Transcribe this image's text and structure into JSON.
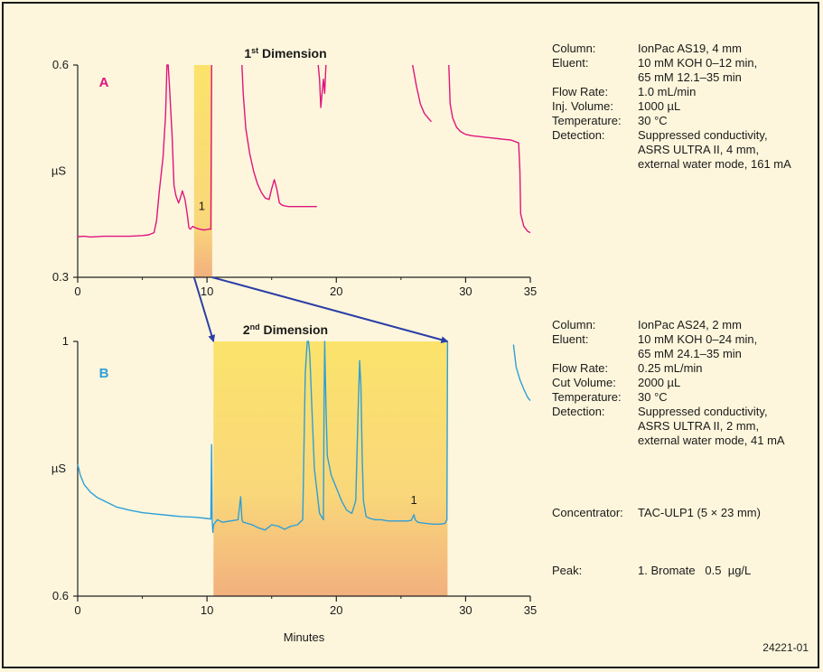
{
  "figure_id": "24221-01",
  "chart_data": [
    {
      "panel": "A",
      "type": "line",
      "title": "1st Dimension",
      "title_main": "1",
      "title_sup": "st",
      "title_rest": " Dimension",
      "color": "#e0157e",
      "ylabel": "µS",
      "ylim": [
        0.3,
        0.6
      ],
      "yticks": [
        "0.6",
        "0.3"
      ],
      "xlim": [
        0,
        35
      ],
      "xticks": [
        "0",
        "10",
        "20",
        "30",
        "35"
      ],
      "highlight": {
        "from": 9.0,
        "to": 10.4
      },
      "peak_label": {
        "text": "1",
        "x": 9.6
      },
      "series": [
        {
          "x": [
            0,
            0.5,
            1,
            2,
            3,
            4,
            5,
            5.5,
            5.9,
            6.1,
            6.3,
            6.6,
            6.8,
            6.9,
            7.0,
            7.1,
            7.3,
            7.45,
            7.6,
            7.7,
            7.8,
            7.9,
            8.1,
            8.3,
            8.5,
            8.6,
            8.7,
            8.8,
            8.9,
            9.1,
            9.4,
            9.7,
            9.9,
            10.1,
            10.3,
            10.36
          ],
          "y": [
            0.3575,
            0.358,
            0.357,
            0.358,
            0.358,
            0.358,
            0.359,
            0.36,
            0.363,
            0.38,
            0.42,
            0.47,
            0.53,
            0.6,
            0.6,
            0.57,
            0.5,
            0.43,
            0.415,
            0.41,
            0.405,
            0.41,
            0.422,
            0.41,
            0.385,
            0.37,
            0.368,
            0.37,
            0.372,
            0.37,
            0.368,
            0.367,
            0.367,
            0.368,
            0.368,
            0.6
          ]
        },
        {
          "x": [
            12.7,
            12.8,
            13.0,
            13.3,
            13.6,
            13.9,
            14.2,
            14.5,
            14.8,
            15.0,
            15.2,
            15.4,
            15.6,
            15.8,
            16.0,
            16.3,
            16.6,
            17.0,
            17.4,
            17.8,
            18.2,
            18.5
          ],
          "y": [
            0.6,
            0.56,
            0.51,
            0.475,
            0.45,
            0.432,
            0.42,
            0.412,
            0.41,
            0.425,
            0.438,
            0.425,
            0.405,
            0.402,
            0.401,
            0.4,
            0.4,
            0.4,
            0.4,
            0.4,
            0.4,
            0.4
          ]
        },
        {
          "x": [
            18.6,
            18.7,
            18.8,
            18.9,
            19.0,
            19.1,
            19.2
          ],
          "y": [
            0.6,
            0.58,
            0.54,
            0.56,
            0.58,
            0.56,
            0.6
          ]
        },
        {
          "x": [
            25.9,
            26.2,
            26.5,
            26.8,
            27.1,
            27.35
          ],
          "y": [
            0.6,
            0.57,
            0.545,
            0.532,
            0.525,
            0.52
          ]
        },
        {
          "x": [
            28.7,
            28.8,
            29.0,
            29.3,
            29.6,
            30.0,
            30.5,
            31.0,
            31.5,
            32.0,
            32.5,
            33.0,
            33.5,
            34.1,
            34.2,
            34.25,
            34.5,
            34.8,
            35
          ],
          "y": [
            0.6,
            0.545,
            0.525,
            0.512,
            0.506,
            0.502,
            0.5,
            0.499,
            0.498,
            0.497,
            0.496,
            0.495,
            0.494,
            0.49,
            0.45,
            0.39,
            0.372,
            0.365,
            0.363
          ]
        }
      ]
    },
    {
      "panel": "B",
      "type": "line",
      "title": "2nd Dimension",
      "title_main": "2",
      "title_sup": "nd",
      "title_rest": " Dimension",
      "color": "#2f9fd6",
      "ylabel": "µS",
      "xlabel": "Minutes",
      "ylim": [
        0.6,
        1.0
      ],
      "yticks": [
        "1",
        "0.6"
      ],
      "xlim": [
        0,
        35
      ],
      "xticks": [
        "0",
        "10",
        "20",
        "30",
        "35"
      ],
      "highlight": {
        "from": 10.5,
        "to": 28.6
      },
      "peak_label": {
        "text": "1",
        "x": 26.0
      },
      "series": [
        {
          "x": [
            0,
            0.2,
            0.5,
            1,
            1.5,
            2,
            2.5,
            3,
            4,
            5,
            6,
            7,
            8,
            9,
            10,
            10.3,
            10.35,
            10.4,
            10.45,
            10.5,
            10.8,
            11.2,
            11.8,
            12.4,
            12.6,
            12.7,
            12.8,
            13.0,
            13.5,
            14,
            14.5,
            15,
            15.5,
            16,
            16.5,
            17,
            17.4,
            17.6,
            17.75,
            17.85,
            17.95,
            18.1,
            18.3,
            18.7,
            19.0,
            19.05,
            19.1,
            19.2,
            19.3,
            19.6,
            20,
            20.4,
            20.8,
            21.2,
            21.5,
            21.7,
            21.8,
            21.9,
            22.0,
            22.1,
            22.3,
            22.6,
            23.0,
            23.5,
            24,
            24.5,
            25,
            25.5,
            25.8,
            26.0,
            26.1,
            26.3,
            26.6,
            27,
            27.5,
            28,
            28.4,
            28.55,
            28.6
          ],
          "y": [
            0.807,
            0.79,
            0.775,
            0.763,
            0.755,
            0.75,
            0.745,
            0.74,
            0.735,
            0.731,
            0.729,
            0.727,
            0.725,
            0.724,
            0.722,
            0.721,
            0.838,
            0.72,
            0.7,
            0.712,
            0.72,
            0.716,
            0.718,
            0.72,
            0.756,
            0.72,
            0.716,
            0.715,
            0.712,
            0.707,
            0.704,
            0.712,
            0.71,
            0.705,
            0.71,
            0.712,
            0.72,
            0.95,
            1.0,
            1.0,
            0.98,
            0.9,
            0.8,
            0.73,
            0.72,
            0.9,
            1.0,
            0.9,
            0.82,
            0.79,
            0.77,
            0.75,
            0.735,
            0.73,
            0.75,
            0.9,
            0.97,
            0.93,
            0.82,
            0.75,
            0.725,
            0.722,
            0.72,
            0.72,
            0.718,
            0.718,
            0.718,
            0.718,
            0.719,
            0.728,
            0.72,
            0.716,
            0.715,
            0.714,
            0.713,
            0.713,
            0.714,
            0.72,
            1.0
          ]
        },
        {
          "x": [
            33.7,
            33.9,
            34.2,
            34.5,
            34.8,
            35
          ],
          "y": [
            0.995,
            0.96,
            0.94,
            0.925,
            0.912,
            0.907
          ]
        }
      ]
    }
  ],
  "conditions_a": [
    {
      "label": "Column:",
      "value": "IonPac AS19, 4 mm"
    },
    {
      "label": "Eluent:",
      "value": "10 mM KOH 0–12 min,\n65 mM 12.1–35 min"
    },
    {
      "label": "Flow Rate:",
      "value": "1.0 mL/min"
    },
    {
      "label": "Inj. Volume:",
      "value": "1000 µL"
    },
    {
      "label": "Temperature:",
      "value": "30 °C"
    },
    {
      "label": "Detection:",
      "value": "Suppressed conductivity,\nASRS ULTRA II, 4 mm,\nexternal water mode, 161 mA"
    }
  ],
  "conditions_b": [
    {
      "label": "Column:",
      "value": "IonPac AS24, 2 mm"
    },
    {
      "label": "Eluent:",
      "value": "10 mM KOH 0–24 min,\n65 mM 24.1–35 min"
    },
    {
      "label": "Flow Rate:",
      "value": "0.25 mL/min"
    },
    {
      "label": "Cut Volume:",
      "value": "2000 µL"
    },
    {
      "label": "Temperature:",
      "value": "30 °C"
    },
    {
      "label": "Detection:",
      "value": "Suppressed conductivity,\nASRS ULTRA II, 2 mm,\nexternal water mode, 41 mA"
    }
  ],
  "concentrator": {
    "label": "Concentrator:",
    "value": "TAC-ULP1 (5 × 23 mm)"
  },
  "peak": {
    "label": "Peak:",
    "value": "1. Bromate   0.5  µg/L"
  }
}
